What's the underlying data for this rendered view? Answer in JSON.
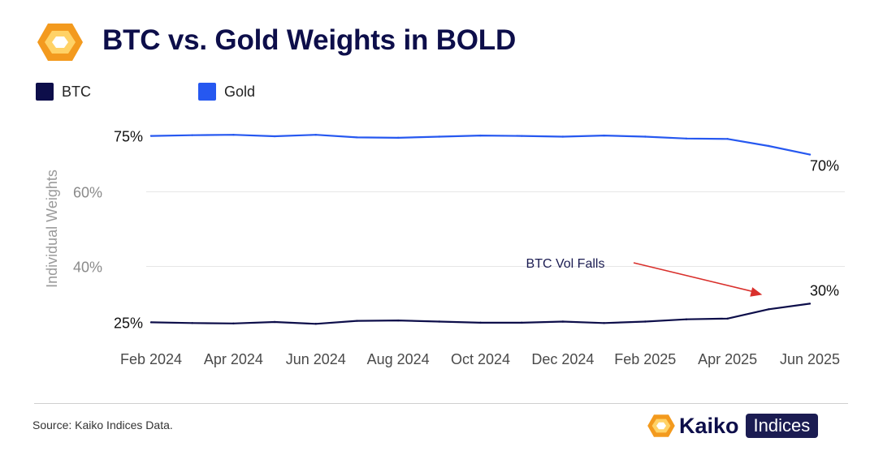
{
  "header": {
    "title": "BTC vs. Gold Weights in BOLD",
    "logo_icon": "kaiko-hexagon-logo-icon"
  },
  "footer": {
    "source": "Source: Kaiko Indices Data.",
    "brand_name": "Kaiko",
    "brand_tag": "Indices",
    "brand_icon": "kaiko-hexagon-logo-icon"
  },
  "colors": {
    "title": "#0d0e4a",
    "btc": "#0d0e4a",
    "gold": "#2658f0",
    "annotation_arrow": "#d9302c",
    "logo_orange": "#f39a1e",
    "logo_light": "#ffd266"
  },
  "chart_data": {
    "type": "line",
    "title": "BTC vs. Gold Weights in BOLD",
    "xlabel": "",
    "ylabel": "Individual Weights",
    "ylim": [
      19,
      81
    ],
    "yticks": [
      {
        "value": 60,
        "label": "60%"
      },
      {
        "value": 40,
        "label": "40%"
      }
    ],
    "grid": true,
    "legend_position": "top-left",
    "x_ticks": [
      "Feb 2024",
      "Apr 2024",
      "Jun 2024",
      "Aug 2024",
      "Oct 2024",
      "Dec 2024",
      "Feb 2025",
      "Apr 2025",
      "Jun 2025"
    ],
    "x": [
      "2024-02",
      "2024-03",
      "2024-04",
      "2024-05",
      "2024-06",
      "2024-07",
      "2024-08",
      "2024-09",
      "2024-10",
      "2024-11",
      "2024-12",
      "2025-01",
      "2025-02",
      "2025-03",
      "2025-04",
      "2025-05",
      "2025-06"
    ],
    "series": [
      {
        "name": "BTC",
        "color": "#0d0e4a",
        "values": [
          25.0,
          24.8,
          24.7,
          25.1,
          24.6,
          25.4,
          25.5,
          25.2,
          24.9,
          24.9,
          25.2,
          24.8,
          25.2,
          25.8,
          26.0,
          28.5,
          30.0
        ]
      },
      {
        "name": "Gold",
        "color": "#2658f0",
        "values": [
          75.0,
          75.2,
          75.3,
          74.9,
          75.3,
          74.6,
          74.5,
          74.8,
          75.1,
          75.0,
          74.8,
          75.1,
          74.8,
          74.3,
          74.2,
          72.3,
          70.0
        ]
      }
    ],
    "annotations": [
      {
        "text": "75%",
        "series": "Gold",
        "index": 0
      },
      {
        "text": "70%",
        "series": "Gold",
        "index": 16
      },
      {
        "text": "25%",
        "series": "BTC",
        "index": 0
      },
      {
        "text": "30%",
        "series": "BTC",
        "index": 16
      },
      {
        "text": "BTC Vol Falls",
        "series": "BTC",
        "index": 15,
        "arrow": true
      }
    ]
  }
}
